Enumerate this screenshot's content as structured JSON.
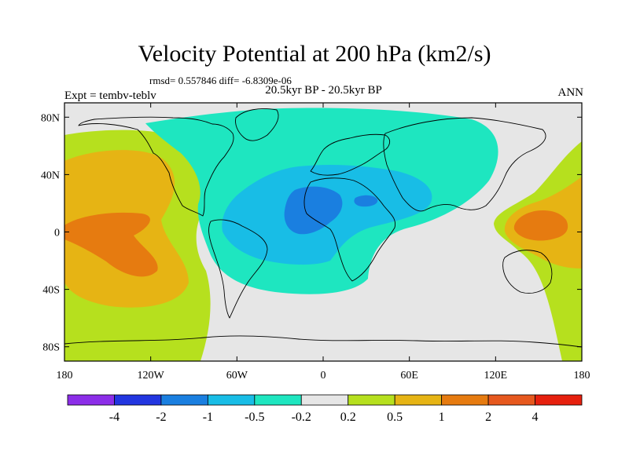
{
  "title": "Velocity Potential at 200 hPa (km2/s)",
  "stats": "rmsd= 0.557846 diff= -6.8309e-06",
  "subtitle": "20.5kyr BP - 20.5kyr BP",
  "left_label": "Expt = tembv-teblv",
  "right_label": "ANN",
  "map": {
    "projection": "equirectangular",
    "lon_range": [
      -180,
      180
    ],
    "lat_range": [
      -90,
      90
    ],
    "lat_ticks": [
      {
        "lat": 80,
        "label": "80N"
      },
      {
        "lat": 40,
        "label": "40N"
      },
      {
        "lat": 0,
        "label": "0"
      },
      {
        "lat": -40,
        "label": "40S"
      },
      {
        "lat": -80,
        "label": "80S"
      }
    ],
    "lon_ticks": [
      {
        "lon": -180,
        "label": "180"
      },
      {
        "lon": -120,
        "label": "120W"
      },
      {
        "lon": -60,
        "label": "60W"
      },
      {
        "lon": 0,
        "label": "0"
      },
      {
        "lon": 60,
        "label": "60E"
      },
      {
        "lon": 120,
        "label": "120E"
      },
      {
        "lon": 180,
        "label": "180"
      }
    ]
  },
  "colorbar": {
    "colors": [
      "#8c2ee8",
      "#2236e0",
      "#1a7fe0",
      "#18bde6",
      "#1ee6c0",
      "#e6e6e6",
      "#b6e01e",
      "#e6b414",
      "#e67b10",
      "#e6581e",
      "#e6200e"
    ],
    "labels": [
      "-4",
      "-2",
      "-1",
      "-0.5",
      "-0.2",
      "0.2",
      "0.5",
      "1",
      "2",
      "4"
    ]
  }
}
